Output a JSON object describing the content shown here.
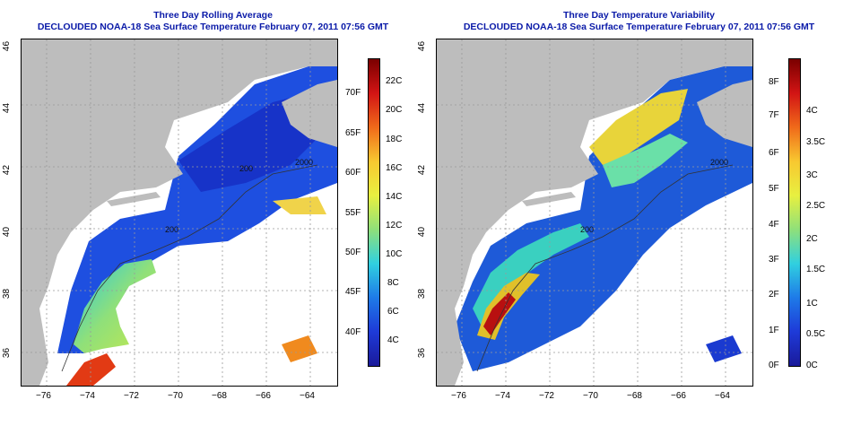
{
  "panels": [
    {
      "title_line1": "Three Day Rolling Average",
      "title_line2": "DECLOUDED NOAA-18 Sea Surface Temperature February 07, 2011 07:56 GMT",
      "colorbar_left_labels": [
        "70F",
        "65F",
        "60F",
        "55F",
        "50F",
        "45F",
        "40F"
      ],
      "colorbar_right_labels": [
        "22C",
        "20C",
        "18C",
        "16C",
        "14C",
        "12C",
        "10C",
        "8C",
        "6C",
        "4C"
      ],
      "contour_labels": [
        "200",
        "200",
        "2000"
      ]
    },
    {
      "title_line1": "Three Day Temperature Variability",
      "title_line2": "DECLOUDED NOAA-18 Sea Surface Temperature February 07, 2011 07:56 GMT",
      "colorbar_left_labels": [
        "8F",
        "7F",
        "6F",
        "5F",
        "4F",
        "3F",
        "2F",
        "1F",
        "0F"
      ],
      "colorbar_right_labels": [
        "4C",
        "3.5C",
        "3C",
        "2.5C",
        "2C",
        "1.5C",
        "1C",
        "0.5C",
        "0C"
      ],
      "contour_labels": [
        "200",
        "2000"
      ]
    }
  ],
  "latitude_ticks": [
    "46",
    "44",
    "42",
    "40",
    "38",
    "36"
  ],
  "longitude_ticks": [
    "−76",
    "−74",
    "−72",
    "−70",
    "−68",
    "−66",
    "−64"
  ],
  "colors": {
    "land": "#bdbdbd",
    "title": "#0a1aa8",
    "water_cold": "#1a3bd8",
    "water_warm": "#e23a14"
  }
}
